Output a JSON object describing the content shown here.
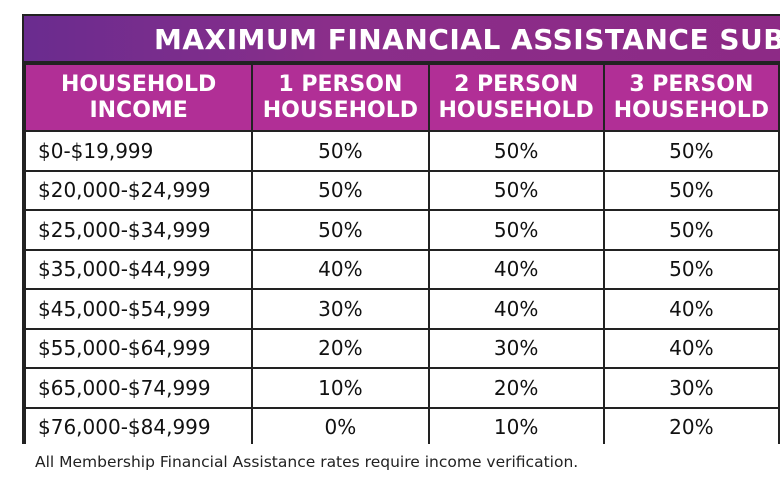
{
  "title": "MAXIMUM FINANCIAL ASSISTANCE SUBSIDIES FO",
  "header": {
    "income_line1": "HOUSEHOLD",
    "income_line2": "INCOME",
    "col1_line1": "1 PERSON",
    "col1_line2": "HOUSEHOLD",
    "col2_line1": "2 PERSON",
    "col2_line2": "HOUSEHOLD",
    "col3_line1": "3 PERSON",
    "col3_line2": "HOUSEHOLD"
  },
  "rows": [
    {
      "income": "$0-$19,999",
      "p1": "50%",
      "p2": "50%",
      "p3": "50%"
    },
    {
      "income": "$20,000-$24,999",
      "p1": "50%",
      "p2": "50%",
      "p3": "50%"
    },
    {
      "income": "$25,000-$34,999",
      "p1": "50%",
      "p2": "50%",
      "p3": "50%"
    },
    {
      "income": "$35,000-$44,999",
      "p1": "40%",
      "p2": "40%",
      "p3": "50%"
    },
    {
      "income": "$45,000-$54,999",
      "p1": "30%",
      "p2": "40%",
      "p3": "40%"
    },
    {
      "income": "$55,000-$64,999",
      "p1": "20%",
      "p2": "30%",
      "p3": "40%"
    },
    {
      "income": "$65,000-$74,999",
      "p1": "10%",
      "p2": "20%",
      "p3": "30%"
    },
    {
      "income": "$76,000-$84,999",
      "p1": "0%",
      "p2": "10%",
      "p3": "20%"
    }
  ],
  "footnote": "All Membership Financial Assistance rates require income verification.",
  "colors": {
    "title_bg": "#8a2e8a",
    "header_bg": "#b12f96",
    "header_text": "#ffffff",
    "border": "#222222"
  }
}
